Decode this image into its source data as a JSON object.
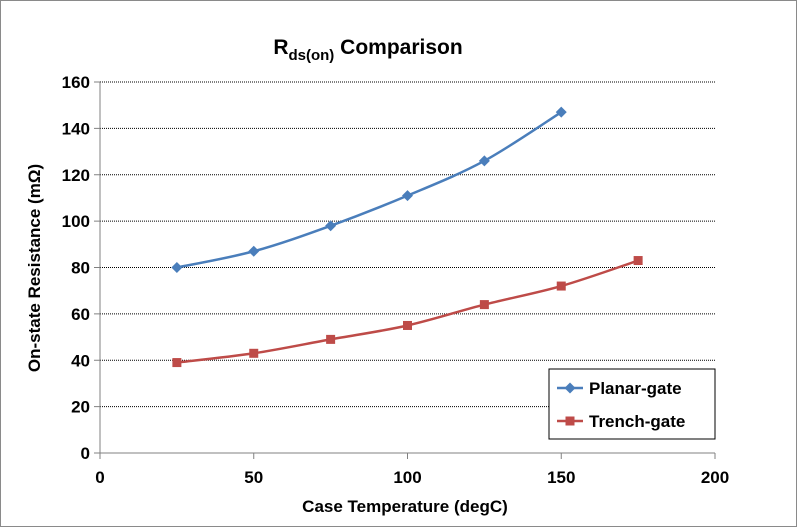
{
  "chart_data": {
    "type": "line",
    "title": {
      "main": "R",
      "subscript": "ds(on)",
      "rest": " Comparison"
    },
    "xlabel": "Case Temperature (degC)",
    "ylabel": "On-state Resistance (mΩ)",
    "xlim": [
      0,
      200
    ],
    "ylim": [
      0,
      160
    ],
    "xticks": [
      0,
      50,
      100,
      150,
      200
    ],
    "yticks": [
      0,
      20,
      40,
      60,
      80,
      100,
      120,
      140,
      160
    ],
    "grid": "horizontal-dotted",
    "legend_position": "bottom-right",
    "series": [
      {
        "name": "Planar-gate",
        "color": "#4a7ebb",
        "marker": "diamond",
        "x": [
          25,
          50,
          75,
          100,
          125,
          150
        ],
        "y": [
          80,
          87,
          98,
          111,
          126,
          147
        ]
      },
      {
        "name": "Trench-gate",
        "color": "#be4b48",
        "marker": "square",
        "x": [
          25,
          50,
          75,
          100,
          125,
          150,
          175
        ],
        "y": [
          39,
          43,
          49,
          55,
          64,
          72,
          83
        ]
      }
    ]
  }
}
